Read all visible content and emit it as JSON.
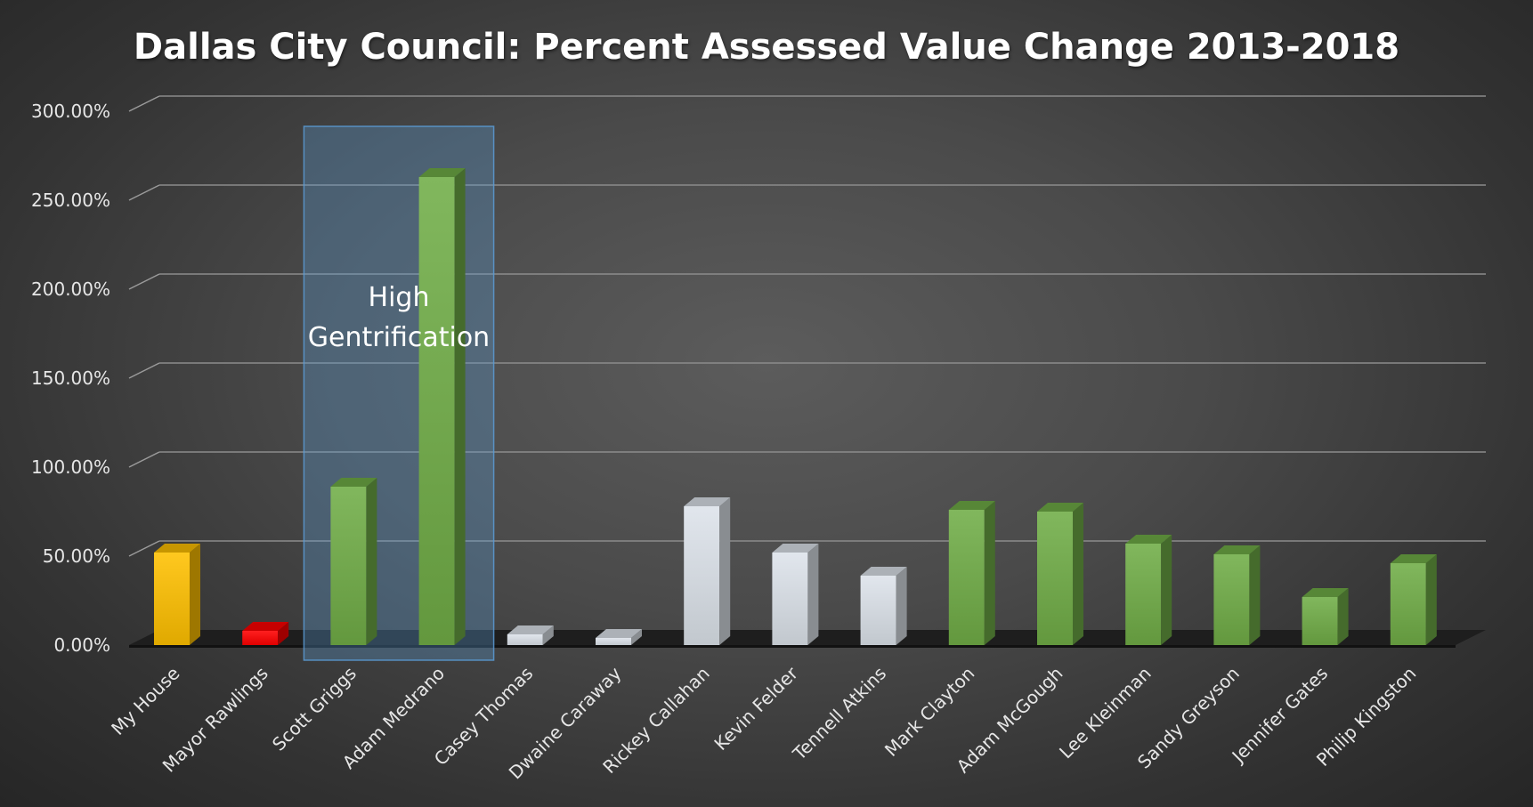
{
  "chart_data": {
    "type": "bar",
    "title": "Dallas City Council: Percent Assessed Value Change 2013-2018",
    "xlabel": "",
    "ylabel": "",
    "ylim": [
      0,
      300
    ],
    "y_ticks": [
      "0.00%",
      "50.00%",
      "100.00%",
      "150.00%",
      "200.00%",
      "250.00%",
      "300.00%"
    ],
    "grid": true,
    "style": "3d",
    "categories": [
      "My House",
      "Mayor Rawlings",
      "Scott Griggs",
      "Adam Medrano",
      "Casey Thomas",
      "Dwaine Caraway",
      "Rickey Callahan",
      "Kevin Felder",
      "Tennell Atkins",
      "Mark Clayton",
      "Adam McGough",
      "Lee Kleinman",
      "Sandy Greyson",
      "Jennifer Gates",
      "Philip Kingston"
    ],
    "values": [
      52,
      8,
      89,
      263,
      6,
      4,
      78,
      52,
      39,
      76,
      75,
      57,
      51,
      27,
      46
    ],
    "bar_colors": [
      "#ffc000",
      "#ff0000",
      "#70ad47",
      "#70ad47",
      "#dde3ea",
      "#dde3ea",
      "#dde3ea",
      "#dde3ea",
      "#dde3ea",
      "#70ad47",
      "#70ad47",
      "#70ad47",
      "#70ad47",
      "#70ad47",
      "#70ad47"
    ],
    "annotations": [
      {
        "text_lines": [
          "High",
          "Gentrification"
        ],
        "highlight_categories": [
          "Scott Griggs",
          "Adam Medrano"
        ],
        "color": "#5b9bd5"
      }
    ]
  }
}
